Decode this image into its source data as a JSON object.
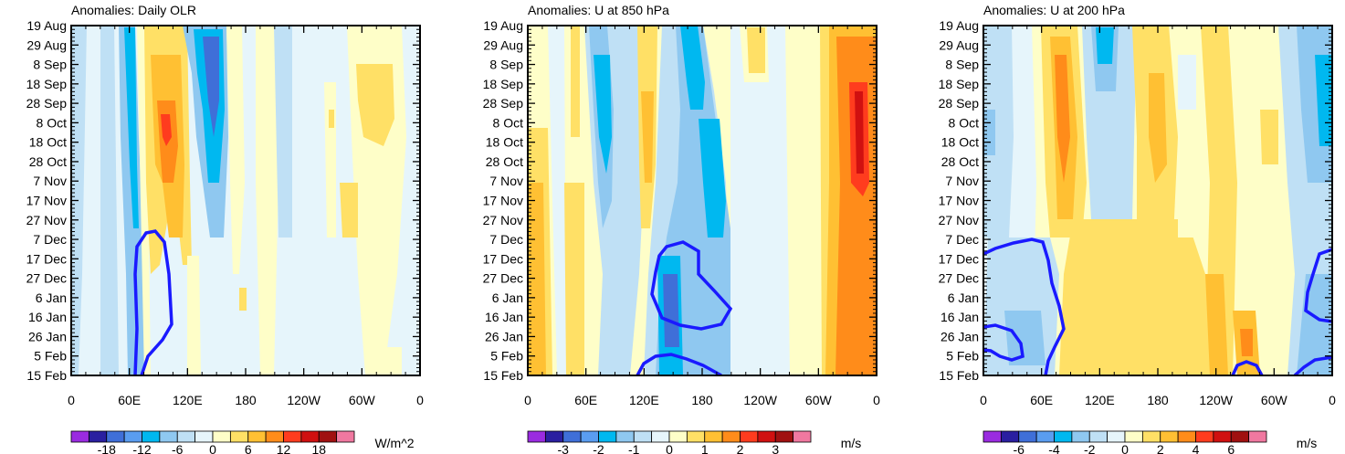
{
  "chart_data": [
    {
      "type": "heatmap",
      "title": "Anomalies: Daily OLR",
      "units": "W/m^2",
      "x_ticks": [
        "0",
        "60E",
        "120E",
        "180",
        "120W",
        "60W",
        "0"
      ],
      "y_ticks": [
        "19 Aug",
        "29 Aug",
        "8 Sep",
        "18 Sep",
        "28 Sep",
        "8 Oct",
        "18 Oct",
        "28 Oct",
        "7 Nov",
        "17 Nov",
        "27 Nov",
        "7 Dec",
        "17 Dec",
        "27 Dec",
        "6 Jan",
        "16 Jan",
        "26 Jan",
        "5 Feb",
        "15 Feb"
      ],
      "colorbar_labels": [
        "-18",
        "-12",
        "-6",
        "0",
        "6",
        "12",
        "18"
      ],
      "levels": [
        -21,
        -18,
        -15,
        -12,
        -9,
        -6,
        -3,
        0,
        3,
        6,
        9,
        12,
        15,
        18,
        21
      ]
    },
    {
      "type": "heatmap",
      "title": "Anomalies: U at 850 hPa",
      "units": "m/s",
      "x_ticks": [
        "0",
        "60E",
        "120E",
        "180",
        "120W",
        "60W",
        "0"
      ],
      "y_ticks": [
        "19 Aug",
        "29 Aug",
        "8 Sep",
        "18 Sep",
        "28 Sep",
        "8 Oct",
        "18 Oct",
        "28 Oct",
        "7 Nov",
        "17 Nov",
        "27 Nov",
        "7 Dec",
        "17 Dec",
        "27 Dec",
        "6 Jan",
        "16 Jan",
        "26 Jan",
        "5 Feb",
        "15 Feb"
      ],
      "colorbar_labels": [
        "-3",
        "-2",
        "-1",
        "0",
        "1",
        "2",
        "3"
      ],
      "levels": [
        -3.5,
        -3,
        -2.5,
        -2,
        -1.5,
        -1,
        -0.5,
        0,
        0.5,
        1,
        1.5,
        2,
        2.5,
        3,
        3.5
      ]
    },
    {
      "type": "heatmap",
      "title": "Anomalies: U at 200 hPa",
      "units": "m/s",
      "x_ticks": [
        "0",
        "60E",
        "120E",
        "180",
        "120W",
        "60W",
        "0"
      ],
      "y_ticks": [
        "19 Aug",
        "29 Aug",
        "8 Sep",
        "18 Sep",
        "28 Sep",
        "8 Oct",
        "18 Oct",
        "28 Oct",
        "7 Nov",
        "17 Nov",
        "27 Nov",
        "7 Dec",
        "17 Dec",
        "27 Dec",
        "6 Jan",
        "16 Jan",
        "26 Jan",
        "5 Feb",
        "15 Feb"
      ],
      "colorbar_labels": [
        "-6",
        "-4",
        "-2",
        "0",
        "2",
        "4",
        "6"
      ],
      "levels": [
        -7,
        -6,
        -5,
        -4,
        -3,
        -2,
        -1,
        0,
        1,
        2,
        3,
        4,
        5,
        6,
        7
      ]
    }
  ],
  "colors": {
    "palette": [
      "#9a2be0",
      "#2a1fa0",
      "#3f6fd8",
      "#5a9df0",
      "#00b8f0",
      "#8fc8f0",
      "#bfe0f5",
      "#e6f5fb",
      "#fefec8",
      "#ffe066",
      "#ffc033",
      "#ff8c1a",
      "#ff3c1e",
      "#d01010",
      "#a01010",
      "#f078a0"
    ],
    "contour": "#1a1aff"
  }
}
